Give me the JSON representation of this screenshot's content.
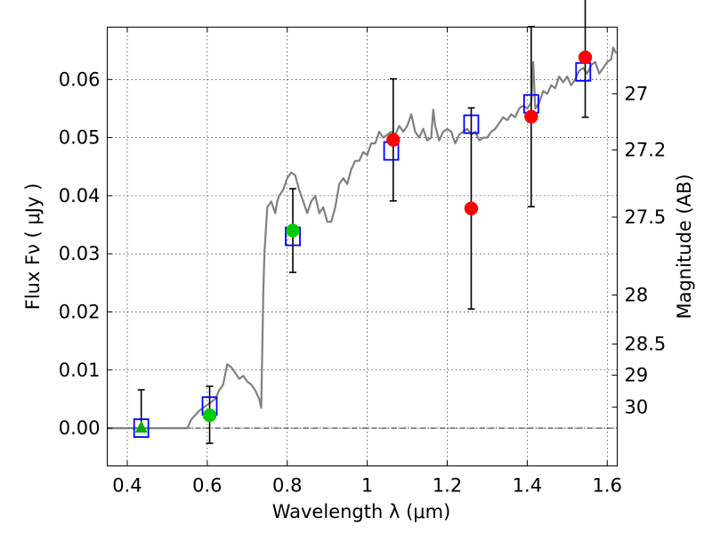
{
  "chart_data": {
    "type": "scatter",
    "xlabel": "Wavelength  λ (μm)",
    "ylabel": "Flux  Fν  ( μJy )",
    "ylabel2": "Magnitude (AB)",
    "xlim": [
      0.35,
      1.625
    ],
    "ylim": [
      -0.0065,
      0.069
    ],
    "grid": true,
    "xticks": [
      {
        "value": 0.4,
        "label": "0.4"
      },
      {
        "value": 0.6,
        "label": "0.6"
      },
      {
        "value": 0.8,
        "label": "0.8"
      },
      {
        "value": 1.0,
        "label": "1"
      },
      {
        "value": 1.2,
        "label": "1.2"
      },
      {
        "value": 1.4,
        "label": "1.4"
      },
      {
        "value": 1.6,
        "label": "1.6"
      }
    ],
    "yticks": [
      {
        "value": 0.0,
        "label": "0.00"
      },
      {
        "value": 0.01,
        "label": "0.01"
      },
      {
        "value": 0.02,
        "label": "0.02"
      },
      {
        "value": 0.03,
        "label": "0.03"
      },
      {
        "value": 0.04,
        "label": "0.04"
      },
      {
        "value": 0.05,
        "label": "0.05"
      },
      {
        "value": 0.06,
        "label": "0.06"
      }
    ],
    "mag_ticks": [
      {
        "value": 27,
        "label": "27"
      },
      {
        "value": 27.2,
        "label": "27.2"
      },
      {
        "value": 27.5,
        "label": "27.5"
      },
      {
        "value": 28,
        "label": "28"
      },
      {
        "value": 28.5,
        "label": "28.5"
      },
      {
        "value": 29,
        "label": "29"
      },
      {
        "value": 30,
        "label": "30"
      }
    ],
    "series": [
      {
        "kind": "model-spectrum",
        "color": "#808080",
        "x": [
          0.35,
          0.55,
          0.56,
          0.58,
          0.6,
          0.62,
          0.63,
          0.64,
          0.65,
          0.66,
          0.67,
          0.68,
          0.69,
          0.7,
          0.71,
          0.72,
          0.73,
          0.735,
          0.74,
          0.743,
          0.75,
          0.76,
          0.77,
          0.775,
          0.78,
          0.79,
          0.8,
          0.81,
          0.82,
          0.83,
          0.84,
          0.85,
          0.86,
          0.87,
          0.88,
          0.89,
          0.9,
          0.91,
          0.92,
          0.93,
          0.94,
          0.95,
          0.96,
          0.97,
          0.98,
          0.99,
          1.0,
          1.01,
          1.02,
          1.03,
          1.04,
          1.05,
          1.06,
          1.07,
          1.08,
          1.09,
          1.1,
          1.11,
          1.12,
          1.13,
          1.14,
          1.15,
          1.16,
          1.165,
          1.17,
          1.18,
          1.19,
          1.2,
          1.21,
          1.22,
          1.23,
          1.24,
          1.25,
          1.26,
          1.27,
          1.28,
          1.29,
          1.3,
          1.31,
          1.32,
          1.33,
          1.34,
          1.35,
          1.36,
          1.37,
          1.38,
          1.39,
          1.4,
          1.41,
          1.415,
          1.42,
          1.43,
          1.44,
          1.45,
          1.46,
          1.47,
          1.48,
          1.49,
          1.5,
          1.51,
          1.52,
          1.53,
          1.54,
          1.55,
          1.56,
          1.57,
          1.58,
          1.59,
          1.6,
          1.61,
          1.615,
          1.622
        ],
        "values": [
          0.0,
          0.0,
          0.0015,
          0.003,
          0.004,
          0.005,
          0.0065,
          0.0075,
          0.011,
          0.0105,
          0.0095,
          0.0085,
          0.009,
          0.008,
          0.0075,
          0.0065,
          0.005,
          0.0035,
          0.023,
          0.03,
          0.038,
          0.039,
          0.037,
          0.039,
          0.04,
          0.041,
          0.043,
          0.044,
          0.0435,
          0.041,
          0.039,
          0.037,
          0.039,
          0.04,
          0.037,
          0.038,
          0.0355,
          0.0355,
          0.038,
          0.042,
          0.043,
          0.042,
          0.0445,
          0.046,
          0.046,
          0.0475,
          0.047,
          0.049,
          0.049,
          0.051,
          0.05,
          0.0505,
          0.051,
          0.0505,
          0.052,
          0.051,
          0.052,
          0.054,
          0.051,
          0.05,
          0.0515,
          0.0495,
          0.05,
          0.0548,
          0.052,
          0.0495,
          0.051,
          0.0515,
          0.051,
          0.049,
          0.0505,
          0.051,
          0.0515,
          0.0505,
          0.051,
          0.0495,
          0.05,
          0.05,
          0.051,
          0.0515,
          0.0525,
          0.0535,
          0.053,
          0.054,
          0.0535,
          0.055,
          0.0555,
          0.055,
          0.056,
          0.063,
          0.055,
          0.056,
          0.058,
          0.0575,
          0.059,
          0.0585,
          0.0605,
          0.0595,
          0.0605,
          0.059,
          0.06,
          0.0615,
          0.062,
          0.061,
          0.0625,
          0.063,
          0.061,
          0.062,
          0.063,
          0.0635,
          0.0655,
          0.0645
        ]
      },
      {
        "kind": "model-photometry",
        "marker": "open-square",
        "color": "#0000ff",
        "x": [
          0.435,
          0.606,
          0.814,
          1.06,
          1.26,
          1.41,
          1.54
        ],
        "values": [
          0.0,
          0.0038,
          0.033,
          0.0477,
          0.0523,
          0.0558,
          0.0613
        ]
      },
      {
        "kind": "upper-limit",
        "marker": "triangle",
        "color": "#00aa00",
        "x": [
          0.435
        ],
        "values": [
          0.0
        ],
        "err_low": [
          0.0
        ],
        "err_high": [
          0.0066
        ]
      },
      {
        "kind": "detection-optical",
        "marker": "circle",
        "color": "#00cc00",
        "x": [
          0.606,
          0.814
        ],
        "values": [
          0.0022,
          0.034
        ],
        "err_low": [
          0.0048,
          0.0072
        ],
        "err_high": [
          0.005,
          0.0072
        ]
      },
      {
        "kind": "detection-nir",
        "marker": "circle",
        "color": "#ff0000",
        "x": [
          1.065,
          1.26,
          1.41,
          1.545
        ],
        "values": [
          0.0496,
          0.0378,
          0.0536,
          0.0638
        ],
        "err_low": [
          0.0105,
          0.0173,
          0.0155,
          0.0103
        ],
        "err_high": [
          0.0105,
          0.0173,
          0.0155,
          0.0103
        ]
      }
    ]
  }
}
